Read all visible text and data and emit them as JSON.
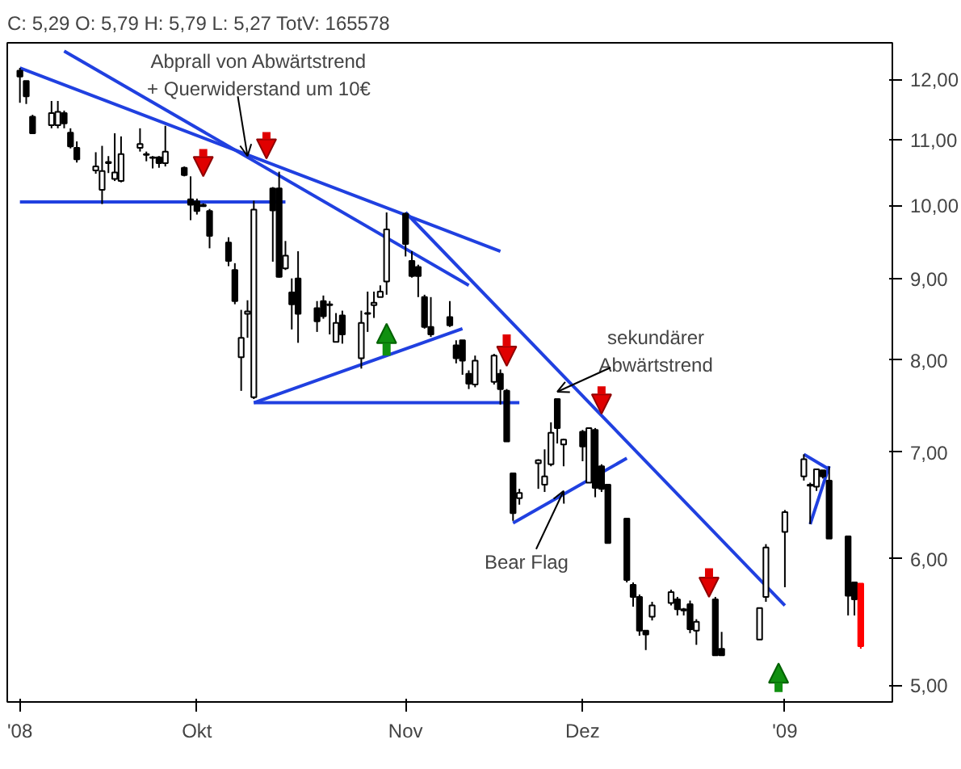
{
  "chart_data": {
    "type": "candlestick",
    "title": "C: 5,29 O: 5,79 H: 5,79 L: 5,27 TotV: 165578",
    "x": [
      "2008-09-03",
      "2008-09-04",
      "2008-09-05",
      "2008-09-08",
      "2008-09-09",
      "2008-09-10",
      "2008-09-11",
      "2008-09-12",
      "2008-09-15",
      "2008-09-16",
      "2008-09-17",
      "2008-09-18",
      "2008-09-19",
      "2008-09-22",
      "2008-09-23",
      "2008-09-24",
      "2008-09-25",
      "2008-09-26",
      "2008-09-29",
      "2008-09-30",
      "2008-10-01",
      "2008-10-02",
      "2008-10-03",
      "2008-10-06",
      "2008-10-07",
      "2008-10-08",
      "2008-10-09",
      "2008-10-10",
      "2008-10-13",
      "2008-10-14",
      "2008-10-15",
      "2008-10-16",
      "2008-10-17",
      "2008-10-20",
      "2008-10-21",
      "2008-10-22",
      "2008-10-23",
      "2008-10-24",
      "2008-10-27",
      "2008-10-28",
      "2008-10-29",
      "2008-10-30",
      "2008-10-31",
      "2008-11-03",
      "2008-11-04",
      "2008-11-05",
      "2008-11-06",
      "2008-11-07",
      "2008-11-10",
      "2008-11-11",
      "2008-11-12",
      "2008-11-13",
      "2008-11-14",
      "2008-11-17",
      "2008-11-18",
      "2008-11-19",
      "2008-11-20",
      "2008-11-21",
      "2008-11-24",
      "2008-11-25",
      "2008-11-26",
      "2008-11-27",
      "2008-11-28",
      "2008-12-01",
      "2008-12-02",
      "2008-12-03",
      "2008-12-04",
      "2008-12-05",
      "2008-12-08",
      "2008-12-09",
      "2008-12-10",
      "2008-12-11",
      "2008-12-12",
      "2008-12-15",
      "2008-12-16",
      "2008-12-17",
      "2008-12-18",
      "2008-12-19",
      "2008-12-22",
      "2008-12-23",
      "2008-12-29",
      "2008-12-30",
      "2009-01-02",
      "2009-01-05",
      "2009-01-06",
      "2009-01-07",
      "2009-01-08",
      "2009-01-09",
      "2009-01-12",
      "2009-01-13",
      "2009-01-14"
    ],
    "ohlc": [
      [
        12.15,
        12.2,
        11.6,
        12.05
      ],
      [
        11.97,
        11.97,
        11.58,
        11.71
      ],
      [
        11.37,
        11.4,
        11.09,
        11.1
      ],
      [
        11.23,
        11.63,
        11.18,
        11.43
      ],
      [
        11.23,
        11.63,
        11.18,
        11.45
      ],
      [
        11.43,
        11.47,
        11.18,
        11.26
      ],
      [
        11.11,
        11.18,
        10.86,
        10.89
      ],
      [
        10.87,
        10.97,
        10.64,
        10.69
      ],
      [
        10.52,
        10.8,
        10.47,
        10.58
      ],
      [
        10.23,
        10.9,
        10.02,
        10.51
      ],
      [
        10.65,
        10.74,
        10.48,
        10.63
      ],
      [
        10.39,
        11.1,
        10.36,
        10.49
      ],
      [
        10.36,
        11.05,
        10.34,
        10.77
      ],
      [
        10.87,
        11.18,
        10.81,
        10.93
      ],
      [
        10.77,
        10.81,
        10.66,
        10.76
      ],
      [
        10.72,
        10.74,
        10.55,
        10.71
      ],
      [
        10.72,
        10.74,
        10.56,
        10.63
      ],
      [
        10.63,
        11.22,
        10.58,
        10.81
      ],
      [
        10.56,
        10.58,
        10.43,
        10.45
      ],
      [
        10.09,
        10.43,
        9.79,
        10.01
      ],
      [
        10.06,
        10.1,
        9.87,
        9.92
      ],
      [
        10.01,
        10.03,
        9.98,
        9.99
      ],
      [
        9.92,
        9.95,
        9.4,
        9.57
      ],
      [
        9.48,
        9.55,
        9.16,
        9.23
      ],
      [
        9.11,
        9.2,
        8.67,
        8.71
      ],
      [
        8.03,
        8.6,
        7.65,
        8.26
      ],
      [
        8.55,
        8.72,
        8.26,
        8.58
      ],
      [
        7.58,
        10.07,
        7.56,
        9.94
      ],
      [
        10.25,
        10.27,
        9.22,
        9.93
      ],
      [
        10.25,
        10.5,
        9.01,
        9.02
      ],
      [
        9.13,
        9.5,
        9.11,
        9.3
      ],
      [
        8.82,
        9.0,
        8.36,
        8.67
      ],
      [
        9.0,
        9.36,
        8.2,
        8.55
      ],
      [
        8.62,
        8.71,
        8.33,
        8.46
      ],
      [
        8.71,
        8.78,
        8.49,
        8.52
      ],
      [
        8.67,
        8.71,
        8.3,
        8.66
      ],
      [
        8.21,
        8.56,
        8.21,
        8.44
      ],
      [
        8.53,
        8.59,
        8.19,
        8.3
      ],
      [
        8.02,
        8.59,
        7.9,
        8.44
      ],
      [
        8.56,
        8.83,
        8.33,
        8.55
      ],
      [
        8.66,
        8.83,
        8.5,
        8.69
      ],
      [
        8.76,
        8.91,
        8.76,
        8.83
      ],
      [
        8.96,
        9.9,
        8.79,
        9.66
      ],
      [
        9.88,
        9.9,
        9.29,
        9.46
      ],
      [
        9.23,
        9.36,
        9.01,
        9.03
      ],
      [
        9.15,
        9.18,
        8.76,
        9.03
      ],
      [
        8.76,
        8.79,
        8.37,
        8.39
      ],
      [
        8.39,
        8.76,
        8.27,
        8.3
      ],
      [
        8.51,
        8.71,
        8.39,
        8.41
      ],
      [
        8.17,
        8.23,
        7.96,
        8.02
      ],
      [
        8.23,
        8.23,
        7.83,
        7.99
      ],
      [
        7.84,
        7.88,
        7.67,
        7.73
      ],
      [
        7.72,
        8.05,
        7.69,
        7.99
      ],
      [
        7.75,
        8.07,
        7.72,
        8.05
      ],
      [
        7.84,
        7.89,
        7.5,
        7.67
      ],
      [
        7.65,
        7.67,
        7.11,
        7.11
      ],
      [
        6.79,
        6.79,
        6.34,
        6.41
      ],
      [
        6.55,
        6.64,
        6.49,
        6.6
      ],
      [
        6.89,
        6.93,
        6.64,
        6.92
      ],
      [
        6.68,
        7.03,
        6.61,
        6.76
      ],
      [
        6.88,
        7.31,
        6.86,
        7.2
      ],
      [
        7.56,
        7.56,
        7.09,
        7.25
      ],
      [
        7.08,
        7.14,
        6.86,
        7.13
      ],
      [
        7.21,
        7.23,
        6.91,
        7.06
      ],
      [
        6.7,
        7.25,
        6.7,
        7.25
      ],
      [
        7.23,
        7.25,
        6.56,
        6.65
      ],
      [
        6.86,
        6.88,
        6.61,
        6.64
      ],
      [
        6.68,
        6.68,
        6.14,
        6.14
      ],
      [
        6.36,
        6.36,
        5.8,
        5.82
      ],
      [
        5.78,
        5.8,
        5.6,
        5.68
      ],
      [
        5.68,
        5.7,
        5.37,
        5.41
      ],
      [
        5.41,
        5.41,
        5.26,
        5.38
      ],
      [
        5.52,
        5.64,
        5.49,
        5.61
      ],
      [
        5.63,
        5.74,
        5.61,
        5.72
      ],
      [
        5.66,
        5.68,
        5.53,
        5.58
      ],
      [
        5.58,
        5.59,
        5.53,
        5.57
      ],
      [
        5.62,
        5.65,
        5.39,
        5.42
      ],
      [
        5.41,
        5.5,
        5.3,
        5.48
      ],
      [
        5.66,
        5.68,
        5.22,
        5.22
      ],
      [
        5.27,
        5.4,
        5.22,
        5.22
      ],
      [
        5.34,
        5.59,
        5.34,
        5.59
      ],
      [
        5.68,
        6.13,
        5.64,
        6.1
      ],
      [
        6.24,
        6.44,
        5.76,
        6.42
      ],
      [
        6.76,
        6.98,
        6.72,
        6.93
      ],
      [
        6.67,
        6.7,
        6.31,
        6.68
      ],
      [
        6.66,
        6.83,
        6.62,
        6.83
      ],
      [
        6.82,
        6.82,
        6.74,
        6.76
      ],
      [
        6.72,
        6.86,
        6.18,
        6.18
      ],
      [
        6.2,
        6.2,
        5.53,
        5.69
      ],
      [
        5.8,
        5.8,
        5.53,
        5.66
      ],
      [
        5.79,
        5.79,
        5.27,
        5.29
      ]
    ],
    "colors": [
      "#000000",
      "#000000",
      "#000000",
      "#ffffff",
      "#ffffff",
      "#000000",
      "#000000",
      "#000000",
      "#ffffff",
      "#ffffff",
      "#000000",
      "#ffffff",
      "#ffffff",
      "#ffffff",
      "#000000",
      "#000000",
      "#000000",
      "#ffffff",
      "#000000",
      "#000000",
      "#000000",
      "#000000",
      "#000000",
      "#000000",
      "#000000",
      "#ffffff",
      "#ffffff",
      "#ffffff",
      "#000000",
      "#000000",
      "#ffffff",
      "#000000",
      "#000000",
      "#000000",
      "#000000",
      "#000000",
      "#ffffff",
      "#000000",
      "#ffffff",
      "#000000",
      "#ffffff",
      "#ffffff",
      "#ffffff",
      "#000000",
      "#000000",
      "#000000",
      "#000000",
      "#000000",
      "#000000",
      "#000000",
      "#000000",
      "#000000",
      "#ffffff",
      "#ffffff",
      "#000000",
      "#000000",
      "#000000",
      "#ffffff",
      "#ffffff",
      "#ffffff",
      "#ffffff",
      "#000000",
      "#ffffff",
      "#000000",
      "#ffffff",
      "#000000",
      "#000000",
      "#000000",
      "#000000",
      "#000000",
      "#000000",
      "#000000",
      "#ffffff",
      "#ffffff",
      "#000000",
      "#000000",
      "#000000",
      "#ffffff",
      "#000000",
      "#000000",
      "#ffffff",
      "#ffffff",
      "#ffffff",
      "#ffffff",
      "#ffffff",
      "#ffffff",
      "#000000",
      "#000000",
      "#000000",
      "#000000",
      "#ff0000"
    ],
    "series": [
      {
        "type": "line",
        "color": "#2040e0",
        "x": [
          "2008-09-03",
          "2008-11-18"
        ],
        "values": [
          12.2,
          9.36
        ]
      },
      {
        "type": "line",
        "color": "#2040e0",
        "x": [
          "2008-09-10",
          "2008-11-13"
        ],
        "values": [
          12.5,
          8.91
        ]
      },
      {
        "type": "line",
        "color": "#2040e0",
        "x": [
          "2008-11-03",
          "2009-01-02"
        ],
        "values": [
          9.9,
          5.61
        ]
      },
      {
        "type": "line",
        "color": "#2040e0",
        "x": [
          "2008-10-10",
          "2008-11-12"
        ],
        "values": [
          7.52,
          8.37
        ]
      },
      {
        "type": "line",
        "color": "#2040e0",
        "x": [
          "2008-10-10",
          "2008-11-21"
        ],
        "values": [
          7.52,
          7.52
        ]
      },
      {
        "type": "line",
        "color": "#2040e0",
        "x": [
          "2008-09-03",
          "2008-10-15"
        ],
        "values": [
          10.05,
          10.05
        ]
      },
      {
        "type": "line",
        "color": "#2040e0",
        "x": [
          "2008-11-20",
          "2008-12-08"
        ],
        "values": [
          6.32,
          6.94
        ]
      },
      {
        "type": "line",
        "color": "#2040e0",
        "x": [
          "2009-01-05",
          "2009-01-09"
        ],
        "values": [
          6.98,
          6.83
        ]
      },
      {
        "type": "line",
        "color": "#2040e0",
        "x": [
          "2009-01-06",
          "2009-01-09"
        ],
        "values": [
          6.31,
          6.86
        ]
      }
    ],
    "annotations": [
      {
        "text": "Abprall von Abwärtstrend\n+ Querwiderstand um 10€",
        "x": "2008-10-09",
        "y": 10.74
      },
      {
        "text": "sekundärer\nAbwärtstrend",
        "x": "2008-11-27",
        "y": 7.64
      },
      {
        "text": "Bear Flag",
        "x": "2008-11-28",
        "y": 6.62
      }
    ],
    "log": true,
    "xlim": [
      "2008-09-01",
      "2009-01-19"
    ],
    "ylim": [
      4.88,
      12.65
    ],
    "xticks": [
      {
        "value": "2008-09-03",
        "label": "'08"
      },
      {
        "value": "2008-10-01",
        "label": "Okt"
      },
      {
        "value": "2008-11-03",
        "label": "Nov"
      },
      {
        "value": "2008-12-01",
        "label": "Dez"
      },
      {
        "value": "2009-01-02",
        "label": "'09"
      }
    ],
    "yticks": [
      {
        "value": 5,
        "label": "5,00"
      },
      {
        "value": 6,
        "label": "6,00"
      },
      {
        "value": 7,
        "label": "7,00"
      },
      {
        "value": 8,
        "label": "8,00"
      },
      {
        "value": 9,
        "label": "9,00"
      },
      {
        "value": 10,
        "label": "10,00"
      },
      {
        "value": 11,
        "label": "11,00"
      },
      {
        "value": 12,
        "label": "12,00"
      }
    ],
    "grid": false
  }
}
